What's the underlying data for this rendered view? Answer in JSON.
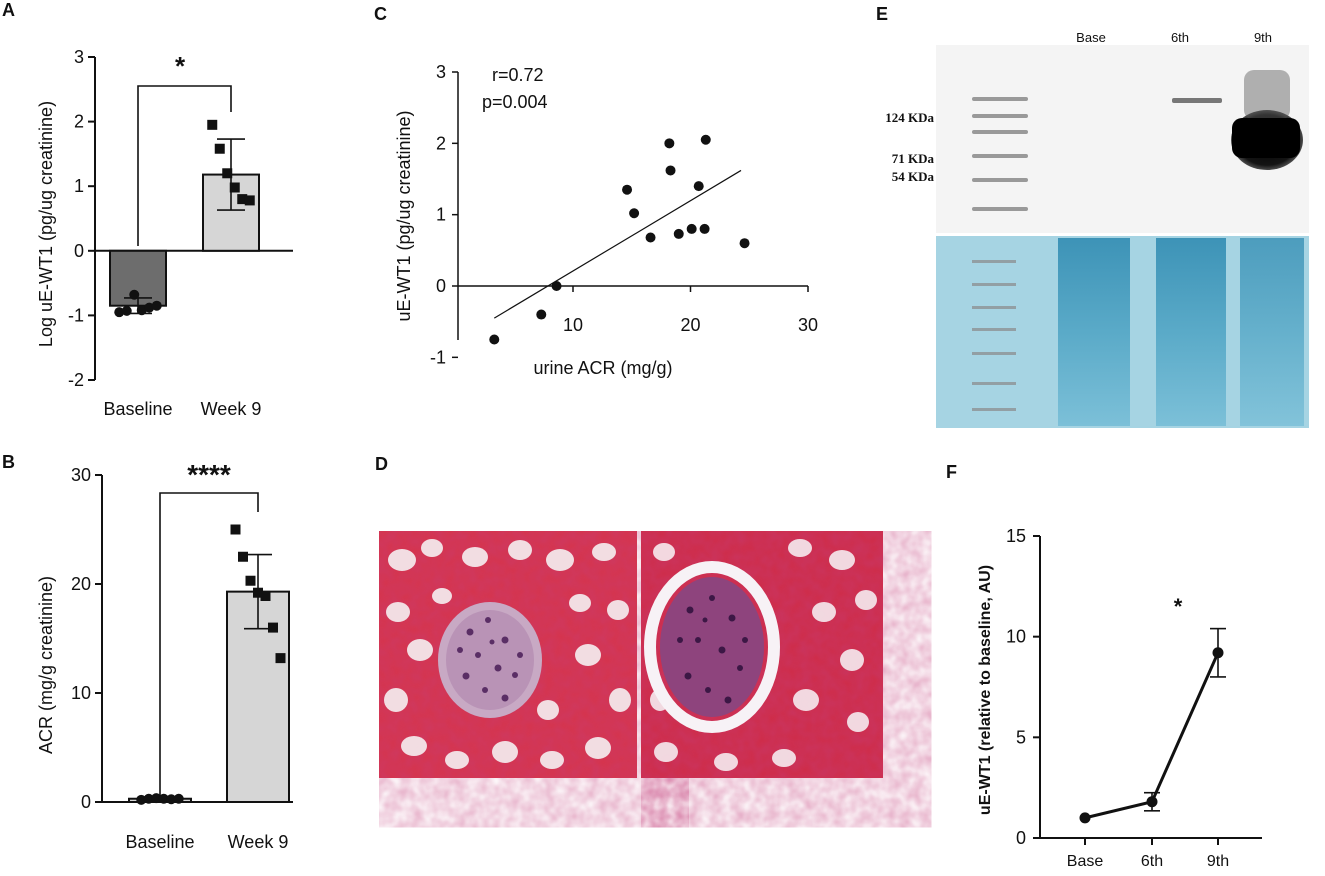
{
  "panels": {
    "A": {
      "letter": "A",
      "significance": "*",
      "chart_data": {
        "type": "bar",
        "categories": [
          "Baseline",
          "Week 9"
        ],
        "values": [
          -0.85,
          1.18
        ],
        "errors": [
          0.12,
          0.55
        ],
        "points": [
          [
            -0.95,
            -0.93,
            -0.68,
            -0.92,
            -0.88,
            -0.85
          ],
          [
            1.95,
            1.58,
            1.2,
            0.98,
            0.8,
            0.78
          ]
        ],
        "ylabel": "Log uE-WT1 (pg/ug creatinine)",
        "ylim": [
          -2,
          3
        ],
        "yticks": [
          "-2",
          "-1",
          "0",
          "1",
          "2",
          "3"
        ],
        "colors": [
          "#6d6d6d",
          "#d6d6d6"
        ]
      }
    },
    "B": {
      "letter": "B",
      "significance": "****",
      "chart_data": {
        "type": "bar",
        "categories": [
          "Baseline",
          "Week 9"
        ],
        "values": [
          0.3,
          19.3
        ],
        "errors": [
          0.15,
          3.4
        ],
        "points": [
          [
            0.2,
            0.3,
            0.35,
            0.3,
            0.25,
            0.3
          ],
          [
            25.0,
            22.5,
            20.3,
            19.2,
            18.9,
            16.0,
            13.2
          ]
        ],
        "ylabel": "ACR (mg/g creatinine)",
        "ylim": [
          0,
          30
        ],
        "yticks": [
          "0",
          "10",
          "20",
          "30"
        ],
        "colors": [
          "#d6d6d6",
          "#d6d6d6"
        ]
      }
    },
    "C": {
      "letter": "C",
      "stats": [
        "r=0.72",
        "p=0.004"
      ],
      "chart_data": {
        "type": "scatter",
        "points": [
          [
            3.3,
            -0.75
          ],
          [
            7.3,
            -0.4
          ],
          [
            8.6,
            0.0
          ],
          [
            14.6,
            1.35
          ],
          [
            15.2,
            1.02
          ],
          [
            16.6,
            0.68
          ],
          [
            18.2,
            2.0
          ],
          [
            18.3,
            1.62
          ],
          [
            19.0,
            0.73
          ],
          [
            20.1,
            0.8
          ],
          [
            20.7,
            1.4
          ],
          [
            21.2,
            0.8
          ],
          [
            21.3,
            2.05
          ],
          [
            24.6,
            0.6
          ]
        ],
        "regression": [
          [
            3.3,
            -0.45
          ],
          [
            24.3,
            1.62
          ]
        ],
        "xlabel": "urine ACR (mg/g)",
        "ylabel": "uE-WT1 (pg/ug creatinine)",
        "xticks": [
          "10",
          "20",
          "30"
        ],
        "yticks": [
          "-1",
          "0",
          "1",
          "2",
          "3"
        ]
      }
    },
    "D": {
      "letter": "D"
    },
    "E": {
      "letter": "E",
      "lanes": [
        "Base",
        "6th",
        "9th"
      ],
      "markers": [
        "124 KDa",
        "71 KDa",
        "54 KDa"
      ]
    },
    "F": {
      "letter": "F",
      "significance": "*",
      "chart_data": {
        "type": "line",
        "categories": [
          "Base",
          "6th",
          "9th"
        ],
        "values": [
          1.0,
          1.8,
          9.2
        ],
        "errors": [
          0.05,
          0.45,
          1.2
        ],
        "ylabel": "uE-WT1 (relative to baseline,  AU)",
        "ylim": [
          0,
          15
        ],
        "yticks": [
          "0",
          "5",
          "10",
          "15"
        ]
      }
    }
  }
}
